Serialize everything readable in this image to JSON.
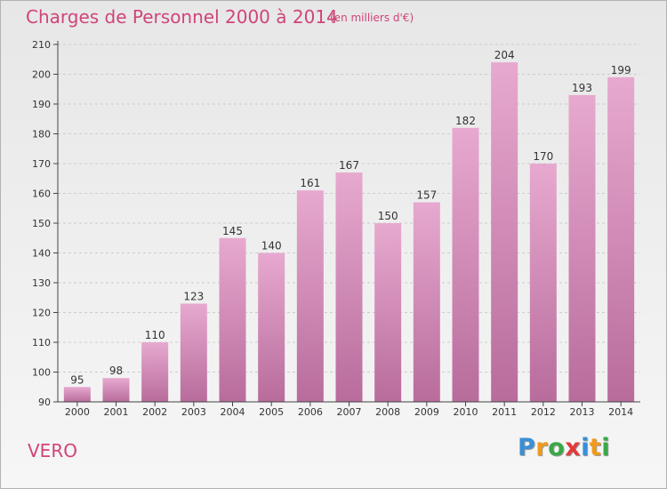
{
  "title": "Charges de Personnel 2000 à 2014",
  "subtitle": "(en milliers d'€)",
  "place": "VERO",
  "brand": {
    "letters": [
      "P",
      "r",
      "o",
      "x",
      "i",
      "t",
      "i"
    ],
    "colors": [
      "#3a8fd6",
      "#f29a1a",
      "#3aa84a",
      "#e23a3a",
      "#3a8fd6",
      "#f29a1a",
      "#3aa84a"
    ]
  },
  "colors": {
    "title": "#d0447a",
    "bar_top": "#e7a9cf",
    "bar_bottom": "#b86c9c",
    "axis": "#444444",
    "grid": "#cccccc"
  },
  "chart_data": {
    "type": "bar",
    "categories": [
      "2000",
      "2001",
      "2002",
      "2003",
      "2004",
      "2005",
      "2006",
      "2007",
      "2008",
      "2009",
      "2010",
      "2011",
      "2012",
      "2013",
      "2014"
    ],
    "values": [
      95,
      98,
      110,
      123,
      145,
      140,
      161,
      167,
      150,
      157,
      182,
      204,
      170,
      193,
      199
    ],
    "yticks": [
      90,
      100,
      110,
      120,
      130,
      140,
      150,
      160,
      170,
      180,
      190,
      200,
      210
    ],
    "ylim": [
      90,
      210
    ],
    "grid": true
  }
}
